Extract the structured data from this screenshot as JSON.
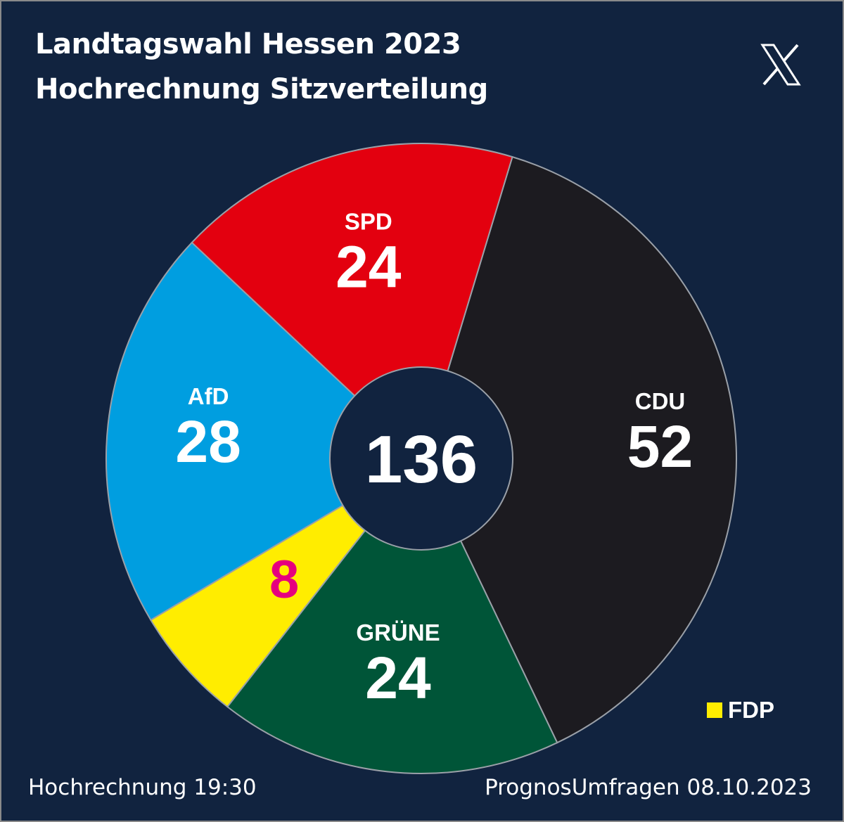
{
  "title": "Landtagswahl Hessen 2023",
  "subtitle": "Hochrechnung Sitzverteilung",
  "logo_icon": "x-logo-icon",
  "footer": {
    "left": "Hochrechnung 19:30",
    "right": "PrognosUmfragen 08.10.2023"
  },
  "legend": {
    "label": "FDP",
    "color": "#ffed00"
  },
  "chart_data": {
    "type": "pie",
    "total": 136,
    "center_label": "136",
    "categories": [
      "CDU",
      "GRÜNE",
      "FDP",
      "AfD",
      "SPD"
    ],
    "values": [
      52,
      24,
      8,
      28,
      24
    ],
    "labels": [
      "CDU",
      "GRÜNE",
      "",
      "AfD",
      "SPD"
    ],
    "value_labels": [
      "52",
      "24",
      "8",
      "28",
      "24"
    ],
    "colors": [
      "#1c1b20",
      "#005538",
      "#ffed00",
      "#009ee0",
      "#e3000f"
    ],
    "value_label_colors": [
      "#ffffff",
      "#ffffff",
      "#e6007e",
      "#ffffff",
      "#ffffff"
    ]
  }
}
